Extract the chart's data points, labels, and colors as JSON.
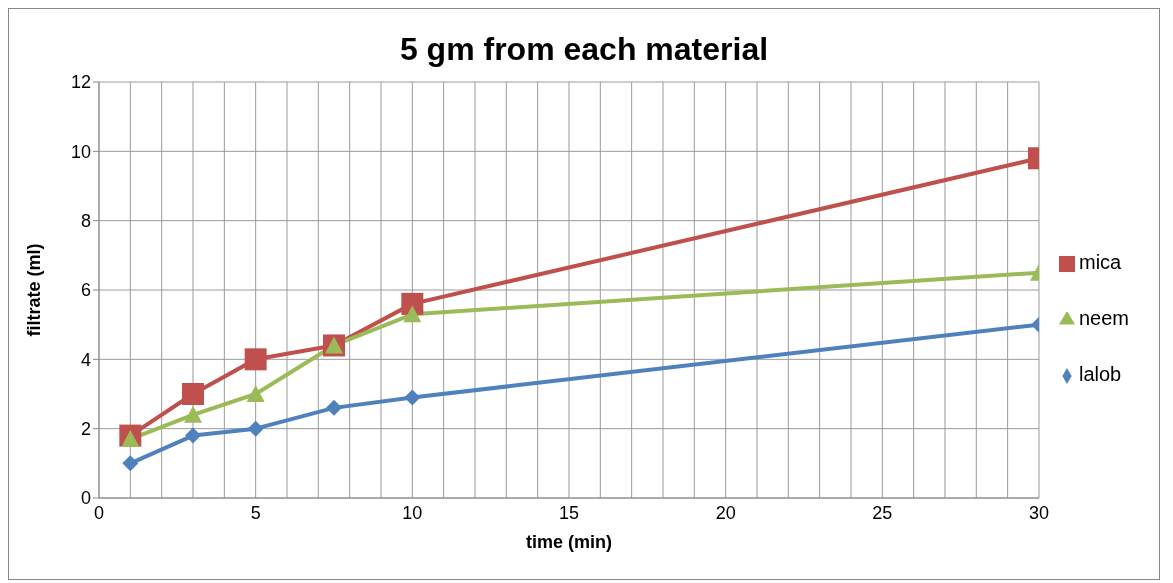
{
  "chart_data": {
    "type": "line",
    "title": "5 gm from each material",
    "xlabel": "time (min)",
    "ylabel": "filtrate (ml)",
    "x": [
      1,
      3,
      5,
      7.5,
      10,
      30
    ],
    "series": [
      {
        "name": "mica",
        "color": "#c0504d",
        "marker": "square",
        "values": [
          1.8,
          3,
          4,
          4.4,
          5.6,
          9.8
        ]
      },
      {
        "name": "neem",
        "color": "#9bbb59",
        "marker": "triangle",
        "values": [
          1.7,
          2.4,
          3,
          4.4,
          5.3,
          6.5
        ]
      },
      {
        "name": "lalob",
        "color": "#4f81bd",
        "marker": "diamond",
        "values": [
          1,
          1.8,
          2,
          2.6,
          2.9,
          5
        ]
      }
    ],
    "xlim": [
      0,
      30
    ],
    "xticks": [
      0,
      {
        "value": 1,
        "label": null
      },
      {
        "value": 2,
        "label": null
      },
      {
        "value": 3,
        "label": null
      },
      {
        "value": 4,
        "label": null
      },
      5,
      {
        "value": 6,
        "label": null
      },
      {
        "value": 7,
        "label": null
      },
      {
        "value": 8,
        "label": null
      },
      {
        "value": 9,
        "label": null
      },
      10,
      {
        "value": 11,
        "label": null
      },
      {
        "value": 12,
        "label": null
      },
      {
        "value": 13,
        "label": null
      },
      {
        "value": 14,
        "label": null
      },
      15,
      {
        "value": 16,
        "label": null
      },
      {
        "value": 17,
        "label": null
      },
      {
        "value": 18,
        "label": null
      },
      {
        "value": 19,
        "label": null
      },
      20,
      {
        "value": 21,
        "label": null
      },
      {
        "value": 22,
        "label": null
      },
      {
        "value": 23,
        "label": null
      },
      {
        "value": 24,
        "label": null
      },
      25,
      {
        "value": 26,
        "label": null
      },
      {
        "value": 27,
        "label": null
      },
      {
        "value": 28,
        "label": null
      },
      {
        "value": 29,
        "label": null
      },
      30
    ],
    "ylim": [
      0,
      12
    ],
    "yticks": [
      0,
      2,
      4,
      6,
      8,
      10,
      12
    ],
    "grid": true,
    "legend": "right",
    "line_style": "solid"
  }
}
